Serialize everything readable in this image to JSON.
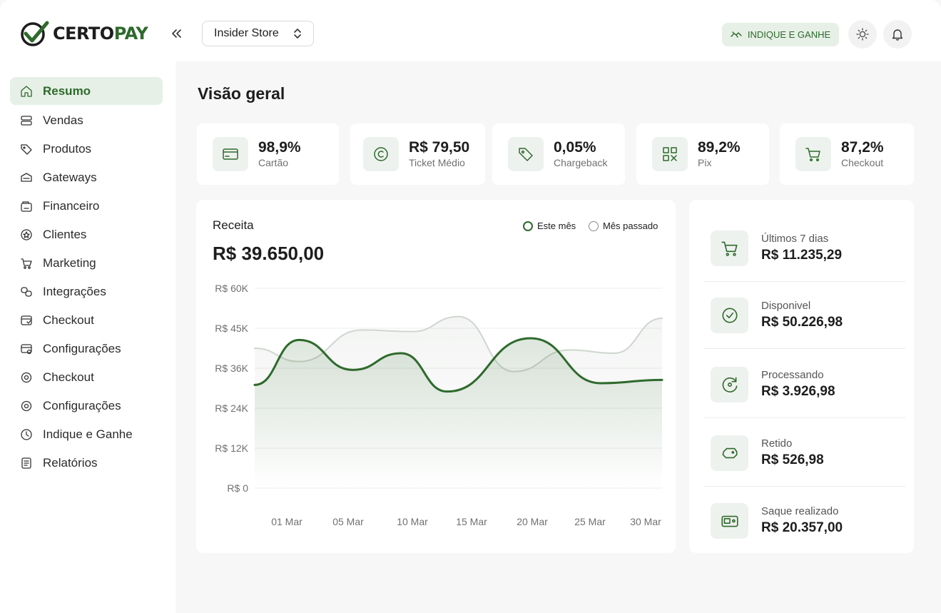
{
  "brand": {
    "logo_text_a": "CERTO",
    "logo_text_b": "PAY"
  },
  "header": {
    "store": "Insider Store",
    "refer_button": "INDIQUE E GANHE",
    "icons": [
      "collapse-icon",
      "chevron-updown-icon",
      "handshake-icon",
      "sun-icon",
      "bell-icon"
    ]
  },
  "sidebar": {
    "items": [
      {
        "label": "Resumo",
        "icon": "home-icon",
        "active": true
      },
      {
        "label": "Vendas",
        "icon": "stack-icon"
      },
      {
        "label": "Produtos",
        "icon": "tag-icon"
      },
      {
        "label": "Gateways",
        "icon": "gateway-icon"
      },
      {
        "label": "Financeiro",
        "icon": "wallet-icon"
      },
      {
        "label": "Clientes",
        "icon": "user-star-icon"
      },
      {
        "label": "Marketing",
        "icon": "cart-icon"
      },
      {
        "label": "Integrações",
        "icon": "link-icon"
      },
      {
        "label": "Checkout",
        "icon": "checkout-icon"
      },
      {
        "label": "Configurações",
        "icon": "config-card-icon"
      },
      {
        "label": "Checkout",
        "icon": "gear-check-icon"
      },
      {
        "label": "Configurações",
        "icon": "gear-icon"
      },
      {
        "label": "Indique e Ganhe",
        "icon": "refer-icon"
      },
      {
        "label": "Relatórios",
        "icon": "report-icon"
      }
    ]
  },
  "main": {
    "title": "Visão geral",
    "stats": [
      {
        "value": "98,9%",
        "label": "Cartão",
        "icon": "card-icon"
      },
      {
        "value": "R$ 79,50",
        "label": "Ticket Médio",
        "icon": "coin-icon"
      },
      {
        "value": "0,05%",
        "label": "Chargeback",
        "icon": "price-tag-icon"
      },
      {
        "value": "89,2%",
        "label": "Pix",
        "icon": "qr-icon"
      },
      {
        "value": "87,2%",
        "label": "Checkout",
        "icon": "cart-icon"
      }
    ],
    "revenue": {
      "title": "Receita",
      "total": "R$ 39.650,00",
      "legend": [
        "Este mês",
        "Mês passado"
      ]
    },
    "balances": [
      {
        "label": "Últimos 7 dias",
        "value": "R$ 11.235,29",
        "icon": "cart-icon"
      },
      {
        "label": "Disponivel",
        "value": "R$ 50.226,98",
        "icon": "check-circle-icon"
      },
      {
        "label": "Processando",
        "value": "R$ 3.926,98",
        "icon": "refresh-money-icon"
      },
      {
        "label": "Retido",
        "value": "R$ 526,98",
        "icon": "piggy-icon"
      },
      {
        "label": "Saque realizado",
        "value": "R$ 20.357,00",
        "icon": "cash-icon"
      }
    ]
  },
  "colors": {
    "accent": "#2e6a2c",
    "accent_light": "#e6f0e6",
    "muted_line": "#cfd6cf"
  },
  "chart_data": {
    "type": "area",
    "x": [
      "01 Mar",
      "05 Mar",
      "10 Mar",
      "15 Mar",
      "20 Mar",
      "25 Mar",
      "30 Mar"
    ],
    "y_ticks": [
      "R$ 0",
      "R$ 12K",
      "R$ 24K",
      "R$ 36K",
      "R$ 45K",
      "R$ 60K"
    ],
    "ylim": [
      0,
      60000
    ],
    "grid": true,
    "legend_position": "top-right",
    "series": [
      {
        "name": "Este mês",
        "color": "#2e6a2c",
        "points": [
          [
            0,
            31000
          ],
          [
            2.4,
            44500
          ],
          [
            5.3,
            35500
          ],
          [
            7.9,
            40500
          ],
          [
            10.4,
            29000
          ],
          [
            14.9,
            45000
          ],
          [
            18.7,
            31500
          ],
          [
            22,
            32500
          ]
        ]
      },
      {
        "name": "Mês passado",
        "color": "#cfd6cf",
        "points": [
          [
            0,
            42000
          ],
          [
            2.4,
            38000
          ],
          [
            5.8,
            47500
          ],
          [
            8.5,
            47000
          ],
          [
            11,
            51500
          ],
          [
            14.0,
            35000
          ],
          [
            17,
            41500
          ],
          [
            19.4,
            40500
          ],
          [
            22,
            51000
          ]
        ]
      }
    ]
  }
}
